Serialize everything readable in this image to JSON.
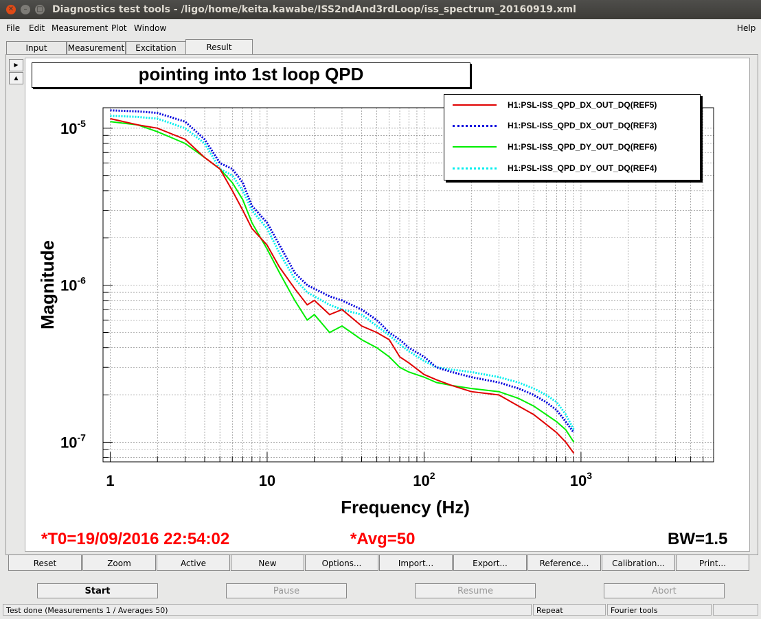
{
  "window": {
    "title": "Diagnostics test tools - /ligo/home/keita.kawabe/ISS2ndAnd3rdLoop/iss_spectrum_20160919.xml"
  },
  "menu": {
    "file": "File",
    "edit": "Edit",
    "measurement": "Measurement",
    "plot": "Plot",
    "window": "Window",
    "help": "Help"
  },
  "tabs": {
    "input": "Input",
    "measurement": "Measurement",
    "excitation": "Excitation",
    "result": "Result",
    "active": "Result"
  },
  "plot": {
    "title": "pointing into 1st loop QPD",
    "status_t0": "*T0=19/09/2016 22:54:02",
    "status_avg": "*Avg=50",
    "status_bw": "BW=1.5"
  },
  "toolbar": {
    "reset": "Reset",
    "zoom": "Zoom",
    "active": "Active",
    "new": "New",
    "options": "Options...",
    "import": "Import...",
    "export": "Export...",
    "reference": "Reference...",
    "calibration": "Calibration...",
    "print": "Print..."
  },
  "controls": {
    "start": "Start",
    "pause": "Pause",
    "resume": "Resume",
    "abort": "Abort"
  },
  "statusbar": {
    "message": "Test done (Measurements 1 / Averages 50)",
    "mode": "Repeat",
    "tool": "Fourier tools"
  },
  "colors": {
    "ref5": "#e00000",
    "ref3": "#0000dd",
    "ref6": "#00ee00",
    "ref4": "#00eeee",
    "status_red": "#ff0000"
  },
  "chart_data": {
    "type": "line",
    "xlabel": "Frequency (Hz)",
    "ylabel": "Magnitude",
    "xscale": "log",
    "yscale": "log",
    "xlim": [
      0.9,
      7000
    ],
    "ylim": [
      7.5e-08,
      1.35e-05
    ],
    "x_ticks": [
      {
        "value": 1,
        "base": "1",
        "exp": ""
      },
      {
        "value": 10,
        "base": "10",
        "exp": ""
      },
      {
        "value": 100,
        "base": "10",
        "exp": "2"
      },
      {
        "value": 1000,
        "base": "10",
        "exp": "3"
      }
    ],
    "y_ticks": [
      {
        "value": 1e-05,
        "base": "10",
        "exp": "-5"
      },
      {
        "value": 1e-06,
        "base": "10",
        "exp": "-6"
      },
      {
        "value": 1e-07,
        "base": "10",
        "exp": "-7"
      }
    ],
    "grid": true,
    "legend_position": "top-right",
    "series": [
      {
        "name": "H1:PSL-ISS_QPD_DX_OUT_DQ(REF5)",
        "color": "#e00000",
        "style": "solid",
        "points": [
          [
            1,
            1.15e-05
          ],
          [
            1.5,
            1.05e-05
          ],
          [
            2,
            1e-05
          ],
          [
            3,
            8.5e-06
          ],
          [
            4,
            6.5e-06
          ],
          [
            5,
            5.5e-06
          ],
          [
            6,
            4e-06
          ],
          [
            7,
            3e-06
          ],
          [
            8,
            2.3e-06
          ],
          [
            10,
            1.8e-06
          ],
          [
            12,
            1.3e-06
          ],
          [
            15,
            9.5e-07
          ],
          [
            18,
            7.5e-07
          ],
          [
            20,
            8e-07
          ],
          [
            25,
            6.5e-07
          ],
          [
            30,
            7e-07
          ],
          [
            40,
            5.5e-07
          ],
          [
            50,
            5e-07
          ],
          [
            60,
            4.5e-07
          ],
          [
            70,
            3.5e-07
          ],
          [
            80,
            3.2e-07
          ],
          [
            100,
            2.7e-07
          ],
          [
            120,
            2.5e-07
          ],
          [
            150,
            2.3e-07
          ],
          [
            200,
            2.1e-07
          ],
          [
            300,
            2e-07
          ],
          [
            400,
            1.7e-07
          ],
          [
            500,
            1.5e-07
          ],
          [
            600,
            1.3e-07
          ],
          [
            700,
            1.15e-07
          ],
          [
            800,
            1e-07
          ],
          [
            900,
            8.5e-08
          ]
        ]
      },
      {
        "name": "H1:PSL-ISS_QPD_DX_OUT_DQ(REF3)",
        "color": "#0000dd",
        "style": "dotted",
        "points": [
          [
            1,
            1.3e-05
          ],
          [
            1.5,
            1.28e-05
          ],
          [
            2,
            1.25e-05
          ],
          [
            3,
            1.1e-05
          ],
          [
            4,
            8.5e-06
          ],
          [
            5,
            6e-06
          ],
          [
            6,
            5.5e-06
          ],
          [
            7,
            4.5e-06
          ],
          [
            8,
            3.2e-06
          ],
          [
            10,
            2.5e-06
          ],
          [
            12,
            1.8e-06
          ],
          [
            15,
            1.2e-06
          ],
          [
            18,
            1e-06
          ],
          [
            20,
            9.5e-07
          ],
          [
            25,
            8.5e-07
          ],
          [
            30,
            8e-07
          ],
          [
            40,
            7e-07
          ],
          [
            50,
            6e-07
          ],
          [
            60,
            5e-07
          ],
          [
            70,
            4.5e-07
          ],
          [
            80,
            4e-07
          ],
          [
            100,
            3.5e-07
          ],
          [
            120,
            3e-07
          ],
          [
            150,
            2.8e-07
          ],
          [
            200,
            2.6e-07
          ],
          [
            300,
            2.4e-07
          ],
          [
            400,
            2.2e-07
          ],
          [
            500,
            2e-07
          ],
          [
            600,
            1.8e-07
          ],
          [
            700,
            1.6e-07
          ],
          [
            800,
            1.35e-07
          ],
          [
            900,
            1.15e-07
          ]
        ]
      },
      {
        "name": "H1:PSL-ISS_QPD_DY_OUT_DQ(REF6)",
        "color": "#00ee00",
        "style": "solid",
        "points": [
          [
            1,
            1.1e-05
          ],
          [
            1.5,
            1.05e-05
          ],
          [
            2,
            9.5e-06
          ],
          [
            3,
            8e-06
          ],
          [
            4,
            6.5e-06
          ],
          [
            5,
            5.5e-06
          ],
          [
            6,
            4.5e-06
          ],
          [
            7,
            3.5e-06
          ],
          [
            8,
            2.5e-06
          ],
          [
            10,
            1.7e-06
          ],
          [
            12,
            1.2e-06
          ],
          [
            15,
            8e-07
          ],
          [
            18,
            6e-07
          ],
          [
            20,
            6.5e-07
          ],
          [
            25,
            5e-07
          ],
          [
            30,
            5.5e-07
          ],
          [
            40,
            4.5e-07
          ],
          [
            50,
            4e-07
          ],
          [
            60,
            3.5e-07
          ],
          [
            70,
            3e-07
          ],
          [
            80,
            2.8e-07
          ],
          [
            100,
            2.6e-07
          ],
          [
            120,
            2.4e-07
          ],
          [
            150,
            2.3e-07
          ],
          [
            200,
            2.2e-07
          ],
          [
            300,
            2.1e-07
          ],
          [
            400,
            1.9e-07
          ],
          [
            500,
            1.7e-07
          ],
          [
            600,
            1.5e-07
          ],
          [
            700,
            1.35e-07
          ],
          [
            800,
            1.2e-07
          ],
          [
            900,
            1e-07
          ]
        ]
      },
      {
        "name": "H1:PSL-ISS_QPD_DY_OUT_DQ(REF4)",
        "color": "#00eeee",
        "style": "dotted",
        "points": [
          [
            1,
            1.2e-05
          ],
          [
            1.5,
            1.18e-05
          ],
          [
            2,
            1.15e-05
          ],
          [
            3,
            1e-05
          ],
          [
            4,
            8e-06
          ],
          [
            5,
            5.5e-06
          ],
          [
            6,
            5e-06
          ],
          [
            7,
            4e-06
          ],
          [
            8,
            3e-06
          ],
          [
            10,
            2.3e-06
          ],
          [
            12,
            1.6e-06
          ],
          [
            15,
            1.1e-06
          ],
          [
            18,
            9e-07
          ],
          [
            20,
            8.5e-07
          ],
          [
            25,
            7.5e-07
          ],
          [
            30,
            7e-07
          ],
          [
            40,
            6.5e-07
          ],
          [
            50,
            5.5e-07
          ],
          [
            60,
            4.8e-07
          ],
          [
            70,
            4.2e-07
          ],
          [
            80,
            3.8e-07
          ],
          [
            100,
            3.3e-07
          ],
          [
            120,
            3e-07
          ],
          [
            150,
            2.9e-07
          ],
          [
            200,
            2.8e-07
          ],
          [
            300,
            2.6e-07
          ],
          [
            400,
            2.4e-07
          ],
          [
            500,
            2.2e-07
          ],
          [
            600,
            2e-07
          ],
          [
            700,
            1.8e-07
          ],
          [
            800,
            1.5e-07
          ],
          [
            900,
            1.2e-07
          ]
        ]
      }
    ]
  }
}
